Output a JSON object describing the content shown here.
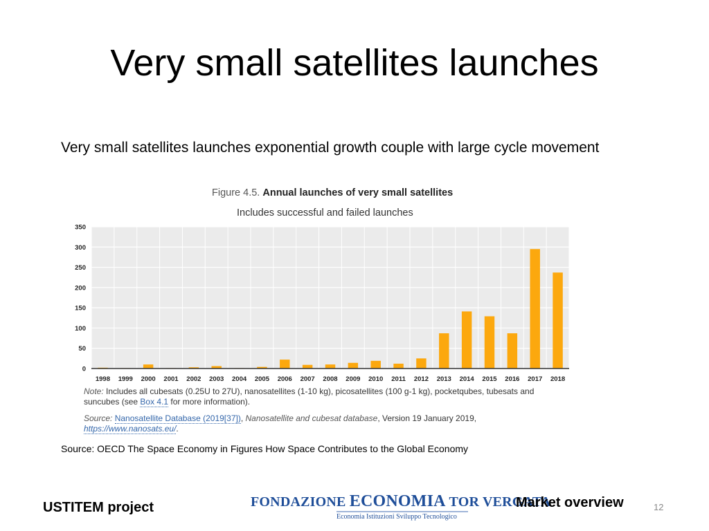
{
  "slide": {
    "title": "Very small satellites launches",
    "subtitle": "Very small satellites launches exponential growth couple with large cycle movement",
    "source_text": "Source: OECD The Space Economy in Figures How Space Contributes to the Global Economy",
    "footer_project": "USTITEM project",
    "footer_section": "Market overview",
    "page_number": "12",
    "logo": {
      "line1_a": "FONDAZIONE ",
      "line1_b": "ECONOMIA",
      "line1_c": " TOR VERGATA",
      "line2": "Economia  Istituzioni  Sviluppo Tecnologico"
    }
  },
  "figure": {
    "label": "Figure 4.5.",
    "title": "Annual launches of very small satellites",
    "subtitle": "Includes successful and failed launches",
    "note_label": "Note:",
    "note_text_1": " Includes all cubesats (0.25U to 27U), nanosatellites (1-10 kg), picosatellites (100 g-1 kg), pocketqubes, tubesats and suncubes (see ",
    "note_link": "Box 4.1",
    "note_text_2": " for more information).",
    "source_label": "Source:",
    "source_link": "Nanosatellite Database (2019[37])",
    "source_italic": "Nanosatellite and cubesat database",
    "source_text": ", Version 19 January 2019,",
    "source_url": "https://www.nanosats.eu/",
    "source_end": "."
  },
  "chart_data": {
    "type": "bar",
    "title": "Annual launches of very small satellites",
    "subtitle": "Includes successful and failed launches",
    "categories": [
      "1998",
      "1999",
      "2000",
      "2001",
      "2002",
      "2003",
      "2004",
      "2005",
      "2006",
      "2007",
      "2008",
      "2009",
      "2010",
      "2011",
      "2012",
      "2013",
      "2014",
      "2015",
      "2016",
      "2017",
      "2018"
    ],
    "values": [
      2,
      1,
      10,
      1,
      3,
      6,
      1,
      4,
      22,
      9,
      10,
      14,
      19,
      12,
      25,
      87,
      141,
      129,
      87,
      295,
      237
    ],
    "ylim": [
      0,
      350
    ],
    "yticks": [
      0,
      50,
      100,
      150,
      200,
      250,
      300,
      350
    ],
    "xlabel": "",
    "ylabel": "",
    "grid": true,
    "bar_color": "#fca80e",
    "plot_background": "#ebebeb"
  }
}
